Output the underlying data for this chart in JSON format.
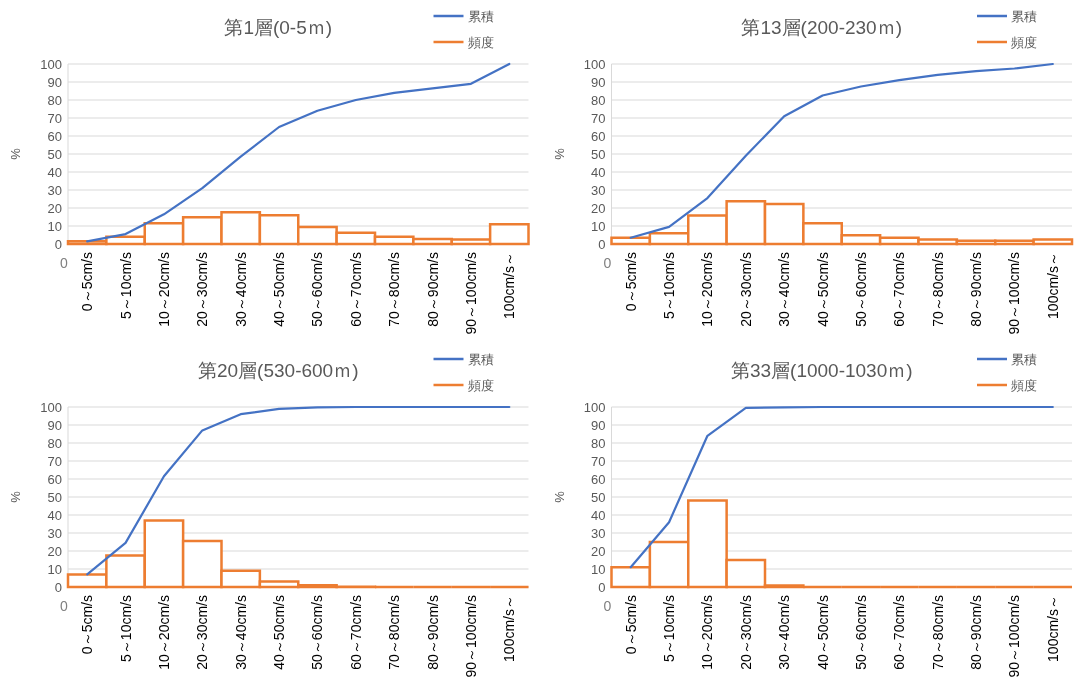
{
  "chart_data": [
    {
      "type": "bar",
      "title": "第1層(0-5ｍ)",
      "ylabel": "%",
      "annotations": [
        "0"
      ],
      "categories": [
        "0～5cm/s",
        "5～10cm/s",
        "10～20cm/s",
        "20～30cm/s",
        "30～40cm/s",
        "40～50cm/s",
        "50～60cm/s",
        "60～70cm/s",
        "70～80cm/s",
        "80～90cm/s",
        "90～100cm/s",
        "100cm/s～"
      ],
      "ylim": [
        0,
        100
      ],
      "yticks": [
        0,
        10,
        20,
        30,
        40,
        50,
        60,
        70,
        80,
        90,
        100
      ],
      "grid": "y",
      "legend": "top right",
      "series": [
        {
          "name": "累積",
          "type": "line",
          "color": "#4472c4",
          "values": [
            1.5,
            5.5,
            16.5,
            31,
            48.5,
            65,
            74,
            80,
            84,
            86.5,
            89,
            100
          ]
        },
        {
          "name": "頻度",
          "color": "#ed7d31",
          "values": [
            1.5,
            4,
            11.5,
            14.8,
            17.7,
            16,
            9.5,
            6.2,
            4,
            2.8,
            2.5,
            11
          ]
        }
      ]
    },
    {
      "type": "bar",
      "title": "第13層(200-230ｍ)",
      "ylabel": "%",
      "annotations": [
        "0"
      ],
      "categories": [
        "0～5cm/s",
        "5～10cm/s",
        "10～20cm/s",
        "20～30cm/s",
        "30～40cm/s",
        "40～50cm/s",
        "50～60cm/s",
        "60～70cm/s",
        "70～80cm/s",
        "80～90cm/s",
        "90～100cm/s",
        "100cm/s～"
      ],
      "ylim": [
        0,
        100
      ],
      "yticks": [
        0,
        10,
        20,
        30,
        40,
        50,
        60,
        70,
        80,
        90,
        100
      ],
      "grid": "y",
      "legend": "top right",
      "series": [
        {
          "name": "累積",
          "type": "line",
          "color": "#4472c4",
          "values": [
            3.5,
            9.5,
            25.5,
            49,
            71,
            82.5,
            87.5,
            91,
            94,
            96,
            97.5,
            100
          ]
        },
        {
          "name": "頻度",
          "color": "#ed7d31",
          "values": [
            3.5,
            6,
            15.8,
            23.8,
            22.2,
            11.5,
            4.8,
            3.5,
            2.5,
            1.8,
            1.8,
            2.5
          ]
        }
      ]
    },
    {
      "type": "bar",
      "title": "第20層(530-600ｍ)",
      "ylabel": "%",
      "annotations": [
        "0"
      ],
      "categories": [
        "0～5cm/s",
        "5～10cm/s",
        "10～20cm/s",
        "20～30cm/s",
        "30～40cm/s",
        "40～50cm/s",
        "50～60cm/s",
        "60～70cm/s",
        "70～80cm/s",
        "80～90cm/s",
        "90～100cm/s",
        "100cm/s～"
      ],
      "ylim": [
        0,
        100
      ],
      "yticks": [
        0,
        10,
        20,
        30,
        40,
        50,
        60,
        70,
        80,
        90,
        100
      ],
      "grid": "y",
      "legend": "top right",
      "series": [
        {
          "name": "累積",
          "type": "line",
          "color": "#4472c4",
          "values": [
            7,
            24.5,
            61.5,
            87,
            96,
            99,
            99.8,
            100,
            100,
            100,
            100,
            100
          ]
        },
        {
          "name": "頻度",
          "color": "#ed7d31",
          "values": [
            7,
            17.5,
            37,
            25.5,
            9,
            3,
            1,
            0.2,
            0,
            0,
            0,
            0
          ]
        }
      ]
    },
    {
      "type": "bar",
      "title": "第33層(1000-1030ｍ)",
      "ylabel": "%",
      "annotations": [
        "0"
      ],
      "categories": [
        "0～5cm/s",
        "5～10cm/s",
        "10～20cm/s",
        "20～30cm/s",
        "30～40cm/s",
        "40～50cm/s",
        "50～60cm/s",
        "60～70cm/s",
        "70～80cm/s",
        "80～90cm/s",
        "90～100cm/s",
        "100cm/s～"
      ],
      "ylim": [
        0,
        100
      ],
      "yticks": [
        0,
        10,
        20,
        30,
        40,
        50,
        60,
        70,
        80,
        90,
        100
      ],
      "grid": "y",
      "legend": "top right",
      "series": [
        {
          "name": "累積",
          "type": "line",
          "color": "#4472c4",
          "values": [
            11,
            36,
            84,
            99.5,
            99.8,
            100,
            100,
            100,
            100,
            100,
            100,
            100
          ]
        },
        {
          "name": "頻度",
          "color": "#ed7d31",
          "values": [
            11,
            25,
            48,
            15,
            0.8,
            0,
            0,
            0,
            0,
            0,
            0,
            0
          ]
        }
      ]
    }
  ]
}
